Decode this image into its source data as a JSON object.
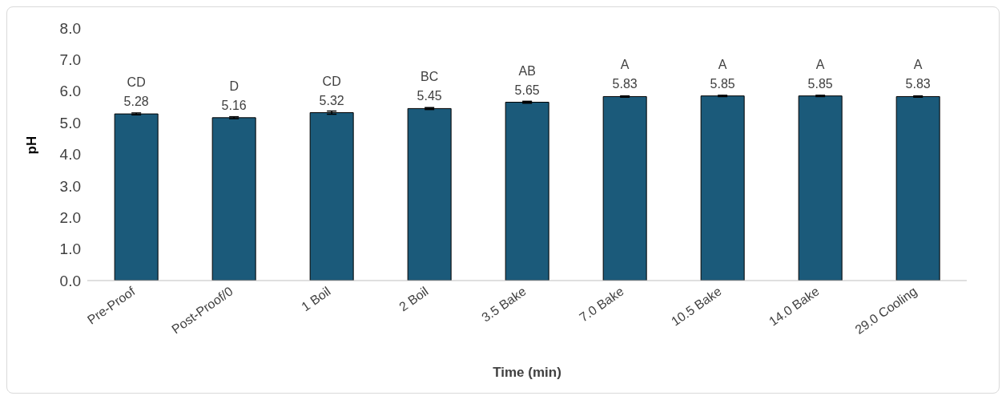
{
  "chart_data": {
    "type": "bar",
    "xlabel": "Time (min)",
    "ylabel": "pH",
    "categories": [
      "Pre-Proof",
      "Post-Proof/0",
      "1 Boil",
      "2 Boil",
      "3.5 Bake",
      "7.0 Bake",
      "10.5 Bake",
      "14.0 Bake",
      "29.0 Cooling"
    ],
    "values": [
      5.28,
      5.16,
      5.32,
      5.45,
      5.65,
      5.83,
      5.85,
      5.85,
      5.83
    ],
    "errors": [
      0.03,
      0.03,
      0.05,
      0.03,
      0.03,
      0.02,
      0.02,
      0.02,
      0.02
    ],
    "color": "#1b5a7a",
    "data_labels": true,
    "ylim": [
      0,
      8
    ],
    "yticks": [
      {
        "value": 0,
        "label": "0.0"
      },
      {
        "value": 1,
        "label": "1.0"
      },
      {
        "value": 2,
        "label": "2.0"
      },
      {
        "value": 3,
        "label": "3.0"
      },
      {
        "value": 4,
        "label": "4.0"
      },
      {
        "value": 5,
        "label": "5.0"
      },
      {
        "value": 6,
        "label": "6.0"
      },
      {
        "value": 7,
        "label": "7.0"
      },
      {
        "value": 8,
        "label": "8.0"
      }
    ],
    "annotations": [
      {
        "text": "CD",
        "x": "Pre-Proof",
        "y": 5.28
      },
      {
        "text": "D",
        "x": "Post-Proof/0",
        "y": 5.16
      },
      {
        "text": "CD",
        "x": "1 Boil",
        "y": 5.32
      },
      {
        "text": "BC",
        "x": "2 Boil",
        "y": 5.45
      },
      {
        "text": "AB",
        "x": "3.5 Bake",
        "y": 5.65
      },
      {
        "text": "A",
        "x": "7.0 Bake",
        "y": 5.83
      },
      {
        "text": "A",
        "x": "10.5 Bake",
        "y": 5.85
      },
      {
        "text": "A",
        "x": "14.0 Bake",
        "y": 5.85
      },
      {
        "text": "A",
        "x": "29.0 Cooling",
        "y": 5.83
      }
    ]
  }
}
